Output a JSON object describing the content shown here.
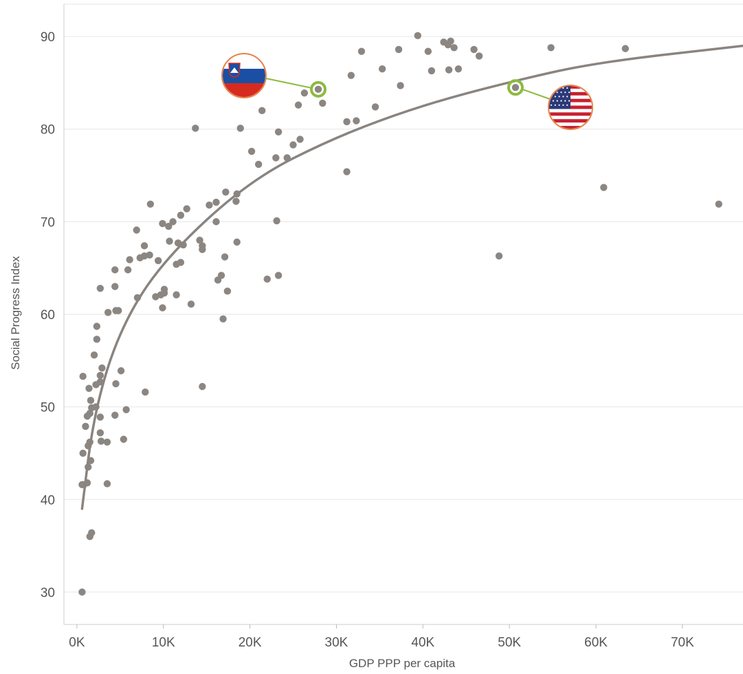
{
  "chart_data": {
    "type": "scatter",
    "title": "",
    "xlabel": "GDP PPP per capita",
    "ylabel": "Social Progress Index",
    "xlim": [
      -1500,
      77000
    ],
    "ylim": [
      26.5,
      93.5
    ],
    "x_ticks": [
      0,
      10000,
      20000,
      30000,
      40000,
      50000,
      60000,
      70000
    ],
    "x_tick_labels": [
      "0K",
      "10K",
      "20K",
      "30K",
      "40K",
      "50K",
      "60K",
      "70K"
    ],
    "y_ticks": [
      30,
      40,
      50,
      60,
      70,
      80,
      90
    ],
    "y_tick_labels": [
      "30",
      "40",
      "50",
      "60",
      "70",
      "80",
      "90"
    ],
    "grid": "horizontal",
    "colors": {
      "point": "#8c8682",
      "trend": "#8a8480",
      "highlight": "#8dba3f",
      "gridline": "#e6e6e6",
      "axis": "#cccccc"
    },
    "trendline": {
      "type": "logarithmic",
      "points": [
        [
          600,
          39.0
        ],
        [
          2000,
          49.5
        ],
        [
          5000,
          58.5
        ],
        [
          10000,
          65.9
        ],
        [
          20000,
          74.5
        ],
        [
          30000,
          79.2
        ],
        [
          40000,
          82.6
        ],
        [
          50000,
          85.1
        ],
        [
          60000,
          87.2
        ],
        [
          77000,
          89.0
        ]
      ]
    },
    "highlights": [
      {
        "icon": "slovenia-flag-icon",
        "x": 27900,
        "y": 84.3
      },
      {
        "icon": "usa-flag-icon",
        "x": 50700,
        "y": 84.5
      }
    ],
    "points": [
      [
        600,
        30.0
      ],
      [
        1500,
        36.0
      ],
      [
        1700,
        36.4
      ],
      [
        1200,
        41.8
      ],
      [
        3500,
        41.7
      ],
      [
        800,
        41.6
      ],
      [
        600,
        41.6
      ],
      [
        1300,
        43.5
      ],
      [
        1600,
        44.2
      ],
      [
        700,
        45.0
      ],
      [
        1300,
        45.8
      ],
      [
        1500,
        46.2
      ],
      [
        2800,
        46.3
      ],
      [
        3500,
        46.2
      ],
      [
        5400,
        46.5
      ],
      [
        2700,
        47.2
      ],
      [
        1000,
        47.9
      ],
      [
        1200,
        49.0
      ],
      [
        1500,
        49.3
      ],
      [
        2700,
        48.9
      ],
      [
        4400,
        49.1
      ],
      [
        5700,
        49.7
      ],
      [
        1700,
        49.9
      ],
      [
        2200,
        50.0
      ],
      [
        1600,
        50.7
      ],
      [
        1400,
        52.0
      ],
      [
        2200,
        52.4
      ],
      [
        2700,
        52.7
      ],
      [
        4500,
        52.5
      ],
      [
        7900,
        51.6
      ],
      [
        14500,
        52.2
      ],
      [
        700,
        53.3
      ],
      [
        2700,
        53.4
      ],
      [
        2900,
        54.2
      ],
      [
        5100,
        53.9
      ],
      [
        2000,
        55.6
      ],
      [
        2300,
        57.3
      ],
      [
        2300,
        58.7
      ],
      [
        3600,
        60.2
      ],
      [
        4500,
        60.4
      ],
      [
        4800,
        60.4
      ],
      [
        9900,
        60.7
      ],
      [
        7000,
        61.8
      ],
      [
        9100,
        61.9
      ],
      [
        9700,
        62.1
      ],
      [
        10100,
        62.3
      ],
      [
        11500,
        62.1
      ],
      [
        13200,
        61.1
      ],
      [
        17400,
        62.5
      ],
      [
        16900,
        59.5
      ],
      [
        2700,
        62.8
      ],
      [
        4400,
        63.0
      ],
      [
        10100,
        62.7
      ],
      [
        16300,
        63.7
      ],
      [
        16700,
        64.2
      ],
      [
        22000,
        63.8
      ],
      [
        23300,
        64.2
      ],
      [
        4400,
        64.8
      ],
      [
        5900,
        64.8
      ],
      [
        6100,
        65.9
      ],
      [
        7300,
        66.1
      ],
      [
        7800,
        66.3
      ],
      [
        8400,
        66.4
      ],
      [
        9400,
        65.8
      ],
      [
        11500,
        65.4
      ],
      [
        12000,
        65.6
      ],
      [
        17100,
        66.2
      ],
      [
        14500,
        67.0
      ],
      [
        14500,
        67.4
      ],
      [
        7800,
        67.4
      ],
      [
        10700,
        67.9
      ],
      [
        11700,
        67.7
      ],
      [
        12300,
        67.5
      ],
      [
        14200,
        68.0
      ],
      [
        18500,
        67.8
      ],
      [
        6900,
        69.1
      ],
      [
        9900,
        69.8
      ],
      [
        10600,
        69.5
      ],
      [
        11100,
        70.0
      ],
      [
        16100,
        70.0
      ],
      [
        23100,
        70.1
      ],
      [
        8500,
        71.9
      ],
      [
        12000,
        70.7
      ],
      [
        12700,
        71.4
      ],
      [
        15300,
        71.8
      ],
      [
        16100,
        72.1
      ],
      [
        18400,
        72.2
      ],
      [
        17200,
        73.2
      ],
      [
        18500,
        73.0
      ],
      [
        48800,
        66.3
      ],
      [
        60900,
        73.7
      ],
      [
        74200,
        71.9
      ],
      [
        20200,
        77.6
      ],
      [
        21000,
        76.2
      ],
      [
        23000,
        76.9
      ],
      [
        24300,
        76.9
      ],
      [
        31200,
        75.4
      ],
      [
        25000,
        78.3
      ],
      [
        25800,
        78.9
      ],
      [
        13700,
        80.1
      ],
      [
        18900,
        80.1
      ],
      [
        23300,
        79.7
      ],
      [
        31200,
        80.8
      ],
      [
        32300,
        80.9
      ],
      [
        21400,
        82.0
      ],
      [
        25600,
        82.6
      ],
      [
        28400,
        82.8
      ],
      [
        34500,
        82.4
      ],
      [
        26300,
        83.9
      ],
      [
        27900,
        84.3
      ],
      [
        50700,
        84.5
      ],
      [
        31700,
        85.8
      ],
      [
        37400,
        84.7
      ],
      [
        35300,
        86.5
      ],
      [
        41000,
        86.3
      ],
      [
        43000,
        86.4
      ],
      [
        44100,
        86.5
      ],
      [
        46500,
        87.9
      ],
      [
        32900,
        88.4
      ],
      [
        37200,
        88.6
      ],
      [
        40600,
        88.4
      ],
      [
        42900,
        89.1
      ],
      [
        42400,
        89.4
      ],
      [
        43200,
        89.5
      ],
      [
        43600,
        88.8
      ],
      [
        45900,
        88.6
      ],
      [
        39400,
        90.1
      ],
      [
        54800,
        88.8
      ],
      [
        63400,
        88.7
      ]
    ]
  }
}
